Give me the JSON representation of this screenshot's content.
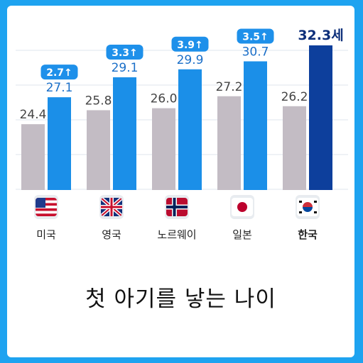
{
  "chart_data": {
    "type": "bar",
    "title": "첫 아기를 낳는 나이",
    "categories": [
      "미국",
      "영국",
      "노르웨이",
      "일본",
      "한국"
    ],
    "flags": [
      "us-flag-icon",
      "uk-flag-icon",
      "norway-flag-icon",
      "japan-flag-icon",
      "korea-flag-icon"
    ],
    "series": [
      {
        "values": [
          24.4,
          25.8,
          26.0,
          27.2,
          26.2
        ],
        "color": "#c3bcc4"
      },
      {
        "values": [
          27.1,
          29.1,
          29.9,
          30.7,
          32.3
        ],
        "color": "#1b8fe8",
        "highlight_color": "#0d3f9c"
      }
    ],
    "data_labels_old": [
      "24.4",
      "25.8",
      "26.0",
      "27.2",
      "26.2"
    ],
    "data_labels_new": [
      "27.1",
      "29.1",
      "29.9",
      "30.7",
      "32.3세"
    ],
    "change_badges": [
      "2.7↑",
      "3.3↑",
      "3.9↑",
      "3.5↑"
    ],
    "highlight_category": "한국",
    "grid": true
  }
}
